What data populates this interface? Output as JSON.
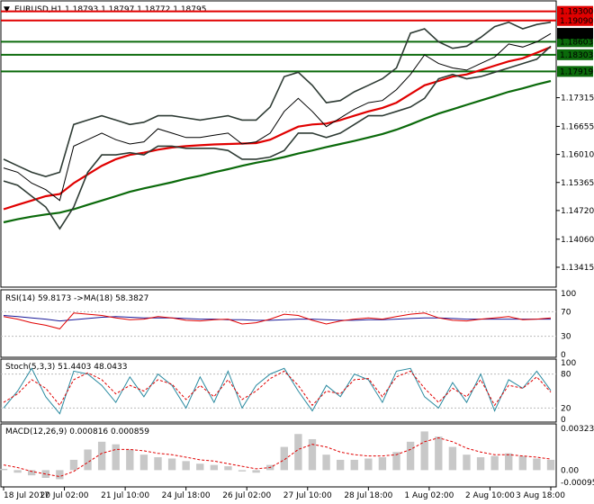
{
  "header": {
    "arrow": "▼",
    "symbol": "EURUSD,H1",
    "ohlc": "1.18793 1.18797 1.18772 1.18795"
  },
  "colors": {
    "price_line": "#000000",
    "bollinger": "#2e3b34",
    "ma_red": "#e00000",
    "ma_green": "#0b6a0b",
    "level_red": "#e00000",
    "level_green": "#0b6a0b",
    "rsi_main": "#1a1a99",
    "rsi_ma": "#e00000",
    "stoch_main": "#2a8aa0",
    "stoch_signal": "#e00000",
    "macd_hist": "#c8c8c8",
    "macd_signal": "#e00000",
    "badge_current": "#000000"
  },
  "chart_data": {
    "type": "line",
    "title": "EURUSD,H1",
    "main": {
      "ylim": [
        1.13,
        1.195
      ],
      "price_axis_labels": [
        "1.17315",
        "1.16655",
        "1.16010",
        "1.15365",
        "1.14720",
        "1.14060",
        "1.13415"
      ],
      "levels": [
        {
          "label": "1.19300",
          "value": 1.193,
          "color": "red"
        },
        {
          "label": "1.19090",
          "value": 1.1909,
          "color": "red"
        },
        {
          "label": "1.18603",
          "value": 1.18603,
          "color": "green"
        },
        {
          "label": "1.18303",
          "value": 1.18303,
          "color": "green"
        },
        {
          "label": "1.17919",
          "value": 1.17919,
          "color": "green"
        }
      ],
      "current_price": {
        "label": "1.18795",
        "value": 1.18795
      },
      "close": [
        1.157,
        1.156,
        1.1535,
        1.152,
        1.1495,
        1.162,
        1.1635,
        1.165,
        1.1635,
        1.1625,
        1.163,
        1.166,
        1.165,
        1.164,
        1.164,
        1.1645,
        1.165,
        1.1625,
        1.163,
        1.165,
        1.17,
        1.173,
        1.17,
        1.1665,
        1.1685,
        1.1705,
        1.172,
        1.1725,
        1.175,
        1.1785,
        1.183,
        1.181,
        1.18,
        1.1795,
        1.181,
        1.1825,
        1.1855,
        1.1848,
        1.186,
        1.1879
      ],
      "ma_red": [
        1.1475,
        1.1485,
        1.1495,
        1.1505,
        1.151,
        1.1535,
        1.1555,
        1.1575,
        1.159,
        1.16,
        1.1605,
        1.1612,
        1.1617,
        1.162,
        1.1622,
        1.1624,
        1.1625,
        1.1626,
        1.1627,
        1.1635,
        1.165,
        1.1665,
        1.167,
        1.1672,
        1.168,
        1.169,
        1.17,
        1.1708,
        1.172,
        1.174,
        1.176,
        1.177,
        1.178,
        1.1785,
        1.1795,
        1.1805,
        1.1815,
        1.1822,
        1.1835,
        1.1848
      ],
      "ma_green": [
        1.1445,
        1.1452,
        1.1458,
        1.1463,
        1.1467,
        1.1475,
        1.1485,
        1.1495,
        1.1505,
        1.1515,
        1.1523,
        1.153,
        1.1537,
        1.1545,
        1.1552,
        1.156,
        1.1567,
        1.1575,
        1.1582,
        1.1588,
        1.1595,
        1.1603,
        1.161,
        1.1618,
        1.1625,
        1.1632,
        1.164,
        1.1648,
        1.1658,
        1.167,
        1.1683,
        1.1695,
        1.1705,
        1.1715,
        1.1725,
        1.1735,
        1.1745,
        1.1753,
        1.1762,
        1.177
      ],
      "bb_upper": [
        1.159,
        1.1575,
        1.156,
        1.155,
        1.156,
        1.167,
        1.168,
        1.169,
        1.168,
        1.167,
        1.1675,
        1.169,
        1.169,
        1.1685,
        1.168,
        1.1685,
        1.169,
        1.168,
        1.168,
        1.171,
        1.178,
        1.179,
        1.176,
        1.172,
        1.1725,
        1.1745,
        1.176,
        1.1775,
        1.18,
        1.188,
        1.189,
        1.186,
        1.1845,
        1.185,
        1.187,
        1.1895,
        1.1905,
        1.189,
        1.19,
        1.1905
      ],
      "bb_lower": [
        1.154,
        1.153,
        1.1505,
        1.148,
        1.143,
        1.148,
        1.156,
        1.16,
        1.16,
        1.1605,
        1.16,
        1.162,
        1.162,
        1.1615,
        1.1615,
        1.1615,
        1.161,
        1.159,
        1.159,
        1.1595,
        1.161,
        1.165,
        1.165,
        1.164,
        1.165,
        1.167,
        1.169,
        1.169,
        1.17,
        1.171,
        1.173,
        1.1775,
        1.1785,
        1.1775,
        1.178,
        1.179,
        1.18,
        1.181,
        1.182,
        1.185
      ]
    },
    "rsi": {
      "label": "RSI(14) 59.8173 ->MA(18) 58.3827",
      "ylim": [
        0,
        100
      ],
      "ticks": [
        "100",
        "70",
        "30",
        "0"
      ],
      "rsi": [
        62,
        58,
        52,
        48,
        42,
        68,
        66,
        64,
        60,
        57,
        58,
        62,
        60,
        56,
        55,
        57,
        58,
        50,
        52,
        58,
        66,
        64,
        56,
        50,
        55,
        58,
        60,
        58,
        62,
        66,
        68,
        60,
        56,
        55,
        58,
        60,
        62,
        57,
        58,
        60
      ],
      "ma": [
        64,
        62,
        60,
        58,
        55,
        57,
        59,
        61,
        62,
        61,
        60,
        60,
        60,
        59,
        58,
        58,
        57,
        57,
        56,
        56,
        57,
        58,
        58,
        57,
        56,
        56,
        57,
        57,
        58,
        59,
        60,
        60,
        59,
        58,
        58,
        58,
        58,
        58,
        58,
        58
      ]
    },
    "stoch": {
      "label": "Stoch(5,3,3) 51.4403 48.0433",
      "ylim": [
        0,
        100
      ],
      "ticks": [
        "100",
        "80",
        "20",
        "0"
      ],
      "main": [
        20,
        50,
        90,
        40,
        10,
        85,
        80,
        60,
        30,
        75,
        40,
        80,
        60,
        20,
        75,
        30,
        85,
        20,
        60,
        80,
        90,
        50,
        15,
        60,
        40,
        80,
        70,
        30,
        85,
        90,
        40,
        20,
        65,
        30,
        80,
        15,
        70,
        55,
        85,
        51
      ],
      "signal": [
        30,
        45,
        70,
        55,
        25,
        70,
        82,
        70,
        45,
        60,
        50,
        70,
        62,
        35,
        60,
        40,
        70,
        35,
        50,
        72,
        85,
        60,
        25,
        50,
        45,
        70,
        72,
        40,
        75,
        85,
        55,
        30,
        55,
        40,
        70,
        25,
        60,
        55,
        75,
        48
      ]
    },
    "macd": {
      "label": "MACD(12,26,9) 0.000816 0.000859",
      "ticks": [
        "0.003235",
        "0.00",
        "-0.00095"
      ],
      "hist": [
        0.0001,
        -0.0002,
        -0.0004,
        -0.0006,
        -0.0007,
        0.0008,
        0.0016,
        0.0022,
        0.002,
        0.0016,
        0.0012,
        0.001,
        0.0009,
        0.0007,
        0.0005,
        0.0004,
        0.0003,
        -0.0001,
        -0.0002,
        0.0004,
        0.0018,
        0.0028,
        0.0024,
        0.0012,
        0.0008,
        0.0008,
        0.0009,
        0.001,
        0.0014,
        0.0022,
        0.003,
        0.0026,
        0.0018,
        0.0012,
        0.001,
        0.0011,
        0.0013,
        0.0011,
        0.0009,
        0.0008
      ],
      "signal": [
        0.0004,
        0.0002,
        -0.0001,
        -0.0003,
        -0.0005,
        -0.0001,
        0.0006,
        0.0013,
        0.0016,
        0.0016,
        0.0015,
        0.0013,
        0.0012,
        0.001,
        0.0008,
        0.0007,
        0.0005,
        0.0003,
        0.0001,
        0.0002,
        0.0008,
        0.0016,
        0.002,
        0.0018,
        0.0014,
        0.0012,
        0.0011,
        0.0011,
        0.0012,
        0.0016,
        0.0022,
        0.0025,
        0.0022,
        0.0017,
        0.0014,
        0.0012,
        0.0012,
        0.0011,
        0.001,
        0.00086
      ]
    },
    "x_labels": [
      "18 Jul 2017",
      "20 Jul 02:00",
      "21 Jul 10:00",
      "24 Jul 18:00",
      "26 Jul 02:00",
      "27 Jul 10:00",
      "28 Jul 18:00",
      "1 Aug 02:00",
      "2 Aug 10:00",
      "3 Aug 18:00"
    ]
  }
}
